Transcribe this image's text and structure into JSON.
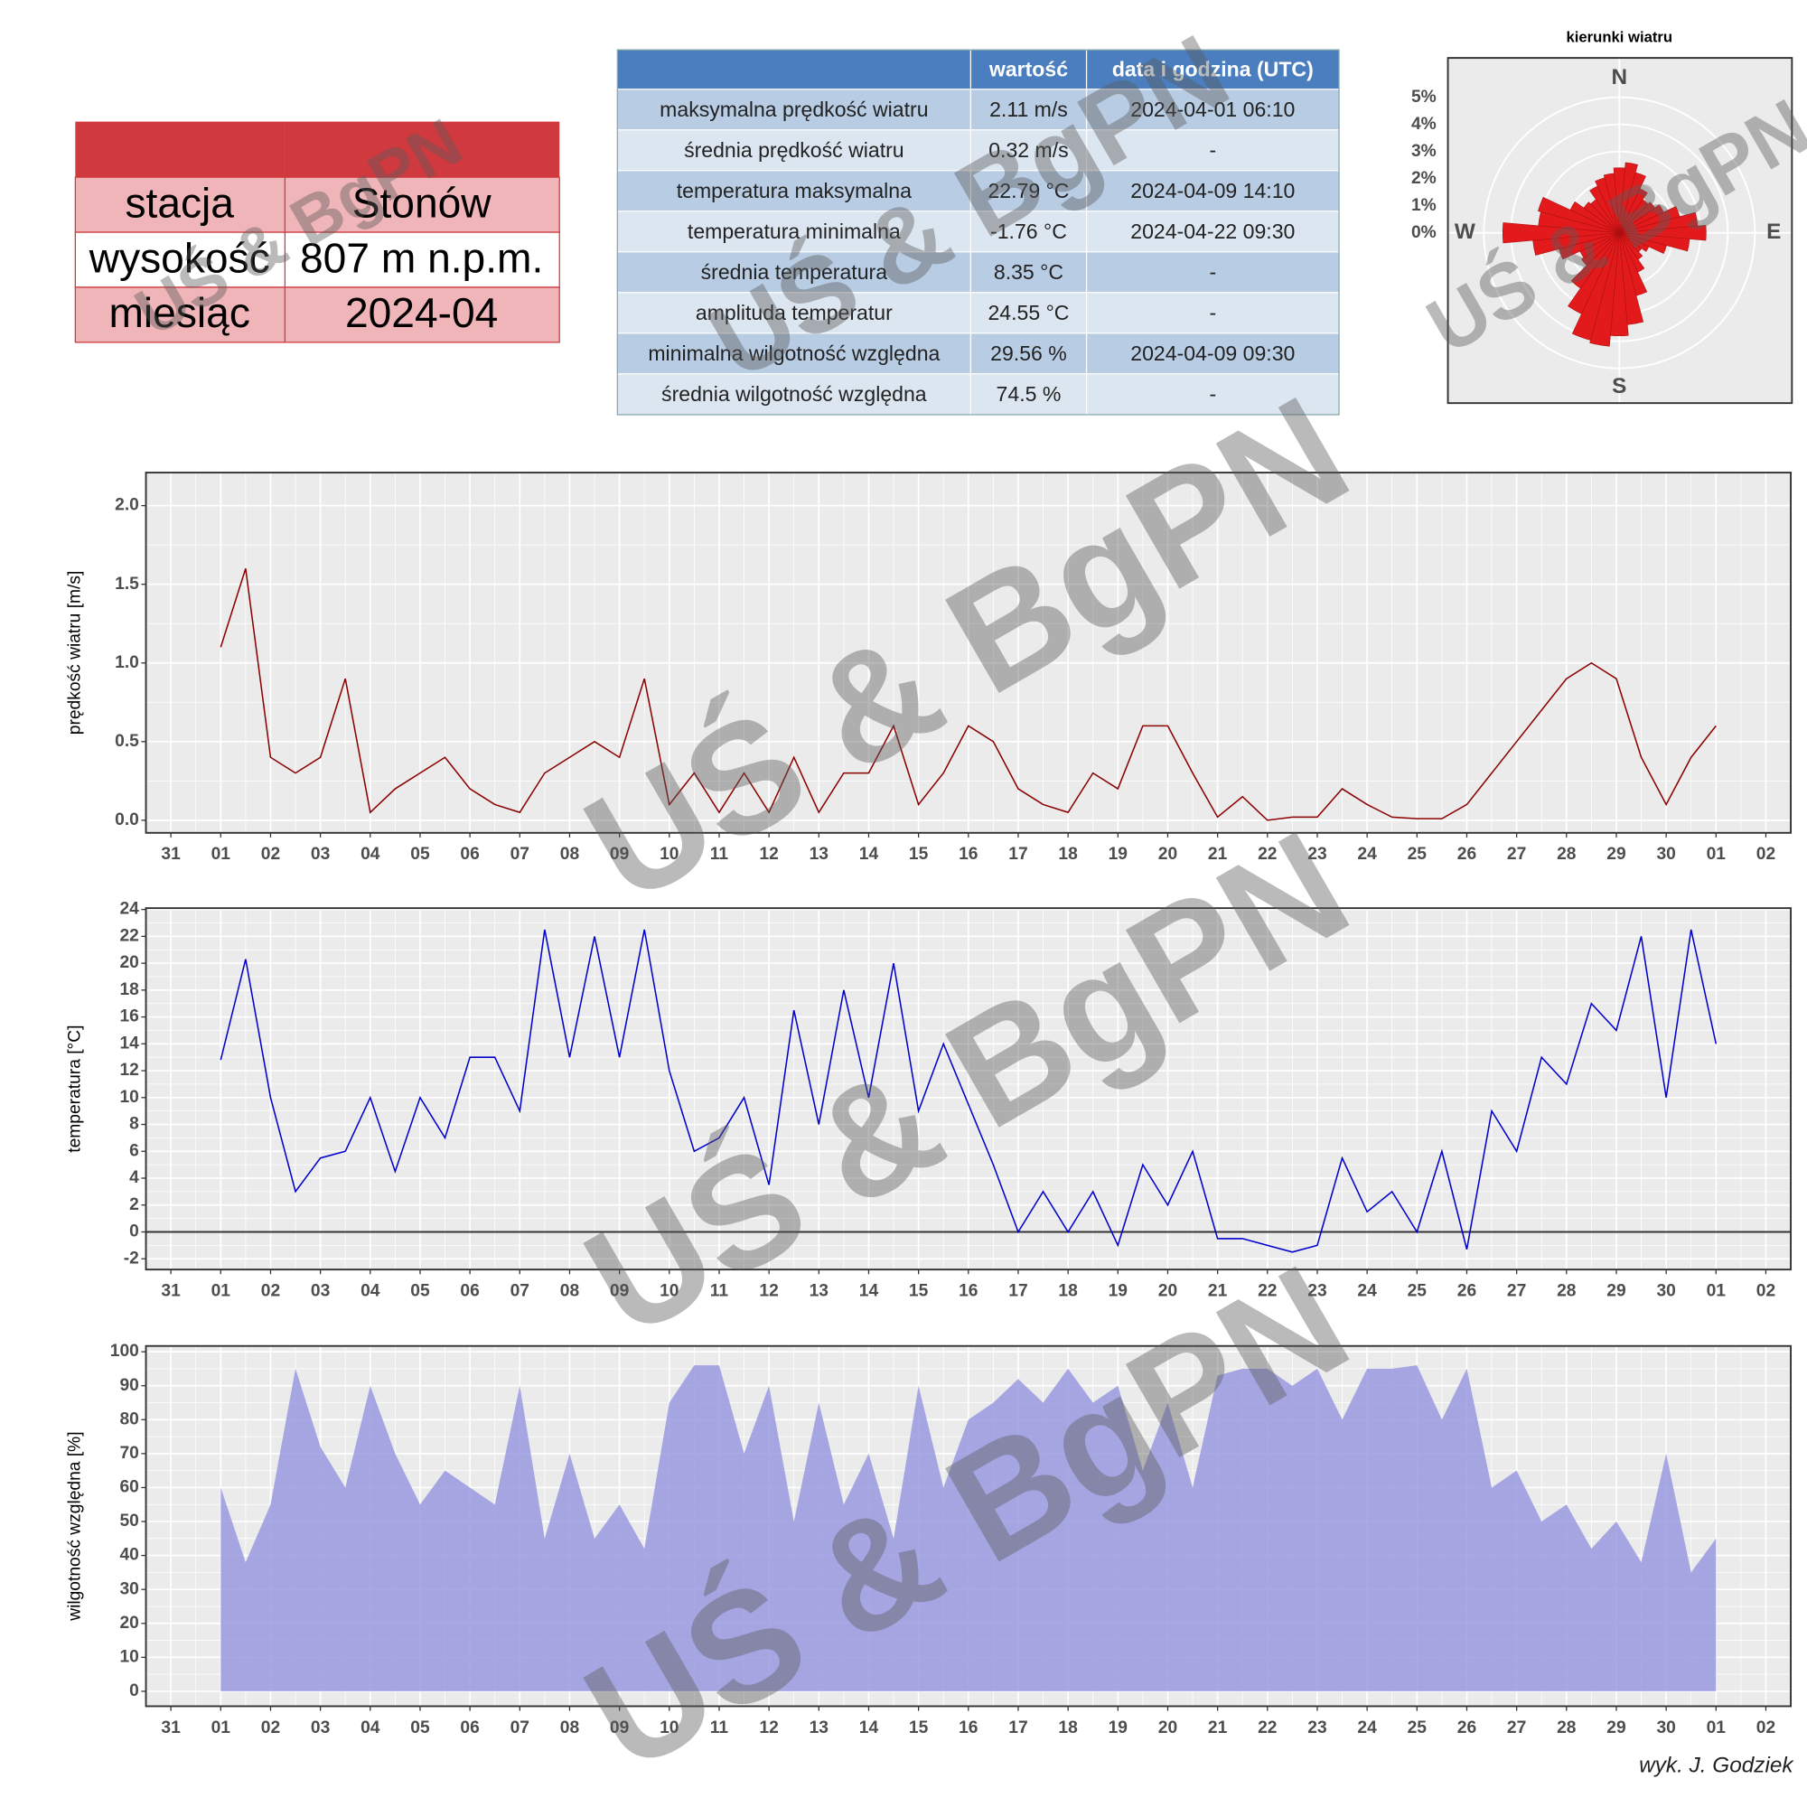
{
  "watermark": "UŚ & BgPN",
  "credit": "wyk. J. Godziek",
  "station_table": {
    "rows": [
      [
        "stacja",
        "Stonów"
      ],
      [
        "wysokość",
        "807 m n.p.m."
      ],
      [
        "miesiąc",
        "2024-04"
      ]
    ]
  },
  "stats_table": {
    "columns": [
      "wartość",
      "data i godzina (UTC)"
    ],
    "rows": [
      [
        "maksymalna prędkość wiatru",
        "2.11 m/s",
        "2024-04-01 06:10"
      ],
      [
        "średnia prędkość wiatru",
        "0.32 m/s",
        "-"
      ],
      [
        "temperatura maksymalna",
        "22.79 °C",
        "2024-04-09 14:10"
      ],
      [
        "temperatura minimalna",
        "-1.76 °C",
        "2024-04-22 09:30"
      ],
      [
        "średnia temperatura",
        "8.35 °C",
        "-"
      ],
      [
        "amplituda temperatur",
        "24.55 °C",
        "-"
      ],
      [
        "minimalna wilgotność względna",
        "29.56 %",
        "2024-04-09 09:30"
      ],
      [
        "średnia wilgotność względna",
        "74.5 %",
        "-"
      ]
    ]
  },
  "chart_data": [
    {
      "type": "polar_bar",
      "title": "kierunki wiatru",
      "color": "#e31a1c",
      "directions": [
        "N",
        "E",
        "S",
        "W"
      ],
      "x": [
        0,
        10,
        20,
        30,
        40,
        50,
        60,
        70,
        80,
        90,
        100,
        110,
        120,
        130,
        140,
        150,
        160,
        170,
        180,
        190,
        200,
        210,
        220,
        230,
        240,
        250,
        260,
        270,
        280,
        290,
        300,
        310,
        320,
        330,
        340,
        350
      ],
      "values": [
        2.4,
        2.6,
        2.3,
        1.8,
        1.5,
        1.6,
        1.8,
        2.3,
        2.9,
        3.2,
        2.6,
        1.8,
        1.2,
        1.0,
        1.2,
        1.6,
        2.4,
        3.4,
        3.8,
        4.2,
        4.1,
        3.3,
        2.5,
        1.7,
        1.6,
        2.3,
        3.2,
        4.3,
        3.0,
        3.1,
        2.0,
        1.6,
        1.5,
        1.9,
        2.1,
        2.2
      ],
      "ylim": [
        0,
        5.7
      ],
      "yticks": [
        {
          "value": 0,
          "label": "0%"
        },
        {
          "value": 1,
          "label": "1%"
        },
        {
          "value": 2,
          "label": "2%"
        },
        {
          "value": 3,
          "label": "3%"
        },
        {
          "value": 4,
          "label": "4%"
        },
        {
          "value": 5,
          "label": "5%"
        }
      ]
    },
    {
      "type": "line",
      "ylabel": "prędkość wiatru [m/s]",
      "color": "#8b0000",
      "xlim": [
        -0.5,
        32.5
      ],
      "xticks": [
        {
          "value": 0,
          "label": "31"
        },
        {
          "value": 1,
          "label": "01"
        },
        {
          "value": 2,
          "label": "02"
        },
        {
          "value": 3,
          "label": "03"
        },
        {
          "value": 4,
          "label": "04"
        },
        {
          "value": 5,
          "label": "05"
        },
        {
          "value": 6,
          "label": "06"
        },
        {
          "value": 7,
          "label": "07"
        },
        {
          "value": 8,
          "label": "08"
        },
        {
          "value": 9,
          "label": "09"
        },
        10,
        11,
        12,
        13,
        14,
        15,
        16,
        17,
        18,
        19,
        20,
        21,
        22,
        23,
        24,
        25,
        26,
        27,
        28,
        29,
        30,
        {
          "value": 31,
          "label": "01"
        },
        {
          "value": 32,
          "label": "02"
        }
      ],
      "ylim": [
        -0.08,
        2.21
      ],
      "yticks": [
        {
          "value": 0,
          "label": "0.0"
        },
        0.5,
        {
          "value": 1,
          "label": "1.0"
        },
        1.5,
        {
          "value": 2,
          "label": "2.0"
        }
      ],
      "x": [
        1,
        1.5,
        2,
        2.5,
        3,
        3.5,
        4,
        4.5,
        5,
        5.5,
        6,
        6.5,
        7,
        7.5,
        8,
        8.5,
        9,
        9.5,
        10,
        10.5,
        11,
        11.5,
        12,
        12.5,
        13,
        13.5,
        14,
        14.5,
        15,
        15.5,
        16,
        16.5,
        17,
        17.5,
        18,
        18.5,
        19,
        19.5,
        20,
        20.5,
        21,
        21.5,
        22,
        22.5,
        23,
        23.5,
        24,
        24.5,
        25,
        25.5,
        26,
        26.5,
        27,
        27.5,
        28,
        28.5,
        29,
        29.5,
        30,
        30.5,
        31
      ],
      "values": [
        1.1,
        1.6,
        0.4,
        0.3,
        0.4,
        0.9,
        0.05,
        0.2,
        0.3,
        0.4,
        0.2,
        0.1,
        0.05,
        0.3,
        0.4,
        0.5,
        0.4,
        0.9,
        0.1,
        0.3,
        0.05,
        0.3,
        0.05,
        0.4,
        0.05,
        0.3,
        0.3,
        0.6,
        0.1,
        0.3,
        0.6,
        0.5,
        0.2,
        0.1,
        0.05,
        0.3,
        0.2,
        0.6,
        0.6,
        0.3,
        0.02,
        0.15,
        0,
        0.02,
        0.02,
        0.2,
        0.1,
        0.02,
        0.01,
        0.01,
        0.1,
        0.3,
        0.5,
        0.7,
        0.9,
        1.0,
        0.9,
        0.4,
        0.1,
        0.4,
        0.6
      ]
    },
    {
      "type": "line",
      "ylabel": "temperatura [°C]",
      "color": "#0000cd",
      "hline": 0,
      "xlim": [
        -0.5,
        32.5
      ],
      "xticks": [
        {
          "value": 0,
          "label": "31"
        },
        {
          "value": 1,
          "label": "01"
        },
        {
          "value": 2,
          "label": "02"
        },
        {
          "value": 3,
          "label": "03"
        },
        {
          "value": 4,
          "label": "04"
        },
        {
          "value": 5,
          "label": "05"
        },
        {
          "value": 6,
          "label": "06"
        },
        {
          "value": 7,
          "label": "07"
        },
        {
          "value": 8,
          "label": "08"
        },
        {
          "value": 9,
          "label": "09"
        },
        10,
        11,
        12,
        13,
        14,
        15,
        16,
        17,
        18,
        19,
        20,
        21,
        22,
        23,
        24,
        25,
        26,
        27,
        28,
        29,
        30,
        {
          "value": 31,
          "label": "01"
        },
        {
          "value": 32,
          "label": "02"
        }
      ],
      "ylim": [
        -2.8,
        24.1
      ],
      "yticks": [
        -2,
        0,
        2,
        4,
        6,
        8,
        10,
        12,
        14,
        16,
        18,
        20,
        22,
        24
      ],
      "x": [
        1,
        1.5,
        2,
        2.5,
        3,
        3.5,
        4,
        4.5,
        5,
        5.5,
        6,
        6.5,
        7,
        7.5,
        8,
        8.5,
        9,
        9.5,
        10,
        10.5,
        11,
        11.5,
        12,
        12.5,
        13,
        13.5,
        14,
        14.5,
        15,
        15.5,
        16,
        16.5,
        17,
        17.5,
        18,
        18.5,
        19,
        19.5,
        20,
        20.5,
        21,
        21.5,
        22,
        22.5,
        23,
        23.5,
        24,
        24.5,
        25,
        25.5,
        26,
        26.5,
        27,
        27.5,
        28,
        28.5,
        29,
        29.5,
        30,
        30.5,
        31
      ],
      "values": [
        12.8,
        20.3,
        10,
        3,
        5.5,
        6,
        10,
        4.5,
        10,
        7,
        13,
        13,
        9,
        22.5,
        13,
        22,
        13,
        22.5,
        12,
        6,
        7,
        10,
        3.5,
        16.5,
        8,
        18,
        10,
        20,
        9,
        14,
        9.5,
        5,
        0,
        3,
        0,
        3,
        -1,
        5,
        2,
        6,
        -0.5,
        -0.5,
        -1,
        -1.5,
        -1,
        5.5,
        1.5,
        3,
        0,
        6,
        -1.3,
        9,
        6,
        13,
        11,
        17,
        15,
        22,
        10,
        22.5,
        14
      ]
    },
    {
      "type": "area",
      "ylabel": "wilgotność względna [%]",
      "color": "#9999e0",
      "xlim": [
        -0.5,
        32.5
      ],
      "xticks": [
        {
          "value": 0,
          "label": "31"
        },
        {
          "value": 1,
          "label": "01"
        },
        {
          "value": 2,
          "label": "02"
        },
        {
          "value": 3,
          "label": "03"
        },
        {
          "value": 4,
          "label": "04"
        },
        {
          "value": 5,
          "label": "05"
        },
        {
          "value": 6,
          "label": "06"
        },
        {
          "value": 7,
          "label": "07"
        },
        {
          "value": 8,
          "label": "08"
        },
        {
          "value": 9,
          "label": "09"
        },
        10,
        11,
        12,
        13,
        14,
        15,
        16,
        17,
        18,
        19,
        20,
        21,
        22,
        23,
        24,
        25,
        26,
        27,
        28,
        29,
        30,
        {
          "value": 31,
          "label": "01"
        },
        {
          "value": 32,
          "label": "02"
        }
      ],
      "ylim": [
        -4.4,
        101.7
      ],
      "yticks": [
        0,
        10,
        20,
        30,
        40,
        50,
        60,
        70,
        80,
        90,
        100
      ],
      "x": [
        1,
        1.5,
        2,
        2.5,
        3,
        3.5,
        4,
        4.5,
        5,
        5.5,
        6,
        6.5,
        7,
        7.5,
        8,
        8.5,
        9,
        9.5,
        10,
        10.5,
        11,
        11.5,
        12,
        12.5,
        13,
        13.5,
        14,
        14.5,
        15,
        15.5,
        16,
        16.5,
        17,
        17.5,
        18,
        18.5,
        19,
        19.5,
        20,
        20.5,
        21,
        21.5,
        22,
        22.5,
        23,
        23.5,
        24,
        24.5,
        25,
        25.5,
        26,
        26.5,
        27,
        27.5,
        28,
        28.5,
        29,
        29.5,
        30,
        30.5,
        31
      ],
      "values": [
        60,
        38,
        55,
        95,
        72,
        60,
        90,
        70,
        55,
        65,
        60,
        55,
        90,
        45,
        70,
        45,
        55,
        42,
        85,
        96,
        96,
        70,
        90,
        50,
        85,
        55,
        70,
        45,
        90,
        60,
        80,
        85,
        92,
        85,
        95,
        85,
        90,
        65,
        85,
        60,
        93,
        95,
        95,
        90,
        95,
        80,
        95,
        95,
        96,
        80,
        95,
        60,
        65,
        50,
        55,
        42,
        50,
        38,
        70,
        35,
        45
      ]
    }
  ]
}
